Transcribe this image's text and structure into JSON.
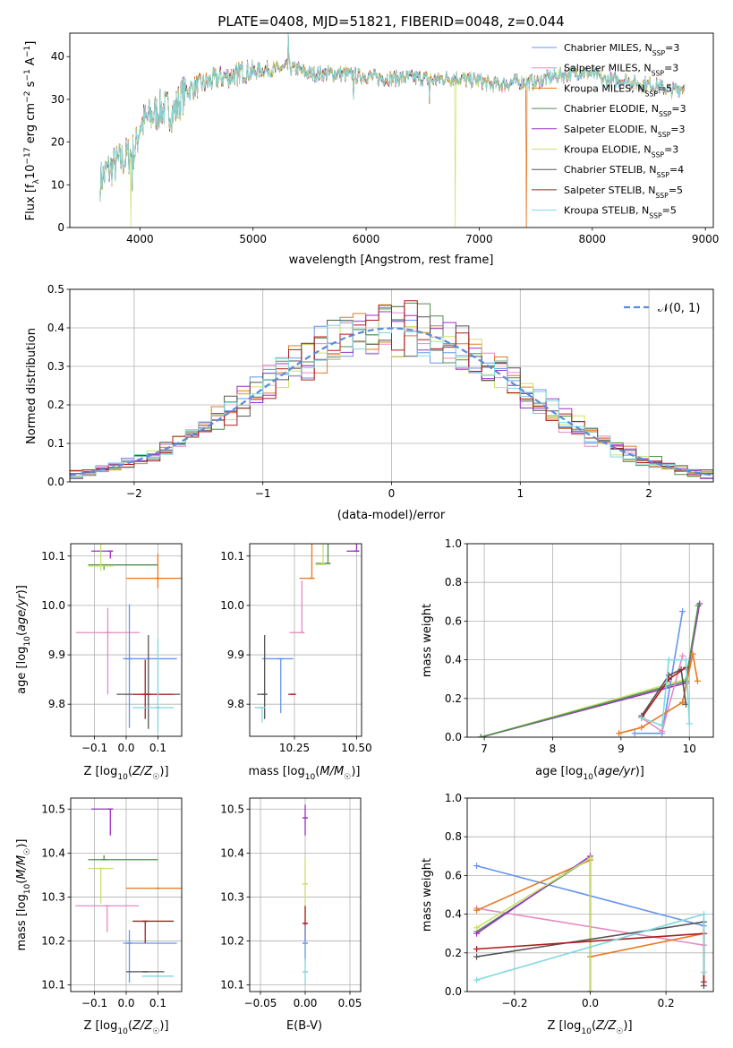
{
  "figure": {
    "title": "PLATE=0408, MJD=51821, FIBERID=0048, z=0.044"
  },
  "models": [
    {
      "name": "Chabrier MILES",
      "nssp": "3",
      "color": "#6495ed"
    },
    {
      "name": "Salpeter MILES",
      "nssp": "3",
      "color": "#e78ac3"
    },
    {
      "name": "Kroupa MILES",
      "nssp": "5",
      "color": "#e8791e"
    },
    {
      "name": "Chabrier ELODIE",
      "nssp": "3",
      "color": "#4f8f4f"
    },
    {
      "name": "Salpeter ELODIE",
      "nssp": "3",
      "color": "#9b30c8"
    },
    {
      "name": "Kroupa ELODIE",
      "nssp": "3",
      "color": "#c8e26b"
    },
    {
      "name": "Chabrier STELIB",
      "nssp": "4",
      "color": "#555555"
    },
    {
      "name": "Salpeter STELIB",
      "nssp": "5",
      "color": "#b01c1c"
    },
    {
      "name": "Kroupa STELIB",
      "nssp": "5",
      "color": "#7fd8e0"
    }
  ],
  "chart_data": [
    {
      "id": "spectrum",
      "type": "line",
      "title": "PLATE=0408, MJD=51821, FIBERID=0048, z=0.044",
      "xlabel": "wavelength [Angstrom, rest frame]",
      "ylabel": "Flux [f_λ 10^-17 erg cm^-2 s^-1 A^-1]",
      "xlim": [
        3380,
        9070
      ],
      "ylim": [
        0,
        45.5
      ],
      "xticks": [
        4000,
        5000,
        6000,
        7000,
        8000,
        9000
      ],
      "yticks": [
        0,
        10,
        20,
        30,
        40
      ],
      "grid": false,
      "legend_position": "top-right",
      "continuum": {
        "x": [
          3650,
          3700,
          3800,
          3900,
          3960,
          4000,
          4100,
          4200,
          4300,
          4400,
          4500,
          4600,
          4700,
          4800,
          4900,
          5000,
          5100,
          5200,
          5300,
          5400,
          5500,
          5600,
          5700,
          5800,
          5900,
          6000,
          6100,
          6200,
          6300,
          6400,
          6500,
          6600,
          6700,
          6800,
          6900,
          7000,
          7100,
          7200,
          7300,
          7400,
          7500,
          7600,
          7700,
          7800,
          7900,
          8000,
          8100,
          8200,
          8300,
          8400,
          8500,
          8600,
          8700,
          8820
        ],
        "y": [
          11,
          13,
          15,
          17,
          18,
          24,
          26,
          28,
          27,
          32,
          33,
          34,
          35,
          35.5,
          36.5,
          36.5,
          37,
          37,
          37.5,
          37,
          36,
          36,
          36,
          36,
          35.5,
          35.5,
          35,
          35,
          35,
          35,
          35,
          34.5,
          35,
          35,
          34.5,
          34.5,
          33.5,
          33.5,
          34,
          34,
          34,
          35,
          35.5,
          36,
          36.5,
          36,
          34.5,
          34.5,
          34.5,
          33.5,
          33.5,
          33,
          32,
          33
        ]
      },
      "dropouts": [
        {
          "model": "Kroupa ELODIE",
          "x": 3920
        },
        {
          "model": "Kroupa ELODIE",
          "x": 6790
        },
        {
          "model": "Kroupa MILES",
          "x": 7420
        }
      ],
      "continuum_end": [
        {
          "model": "Salpeter STELIB",
          "x": 7420
        }
      ]
    },
    {
      "id": "residuals",
      "type": "histogram",
      "xlabel": "(data-model)/error",
      "ylabel": "Normed distribution",
      "xlim": [
        -2.5,
        2.5
      ],
      "ylim": [
        0,
        0.5
      ],
      "xticks": [
        -2,
        -1,
        0,
        1,
        2
      ],
      "yticks": [
        0.0,
        0.1,
        0.2,
        0.3,
        0.4,
        0.5
      ],
      "grid": true,
      "bin_width": 0.1,
      "reference_curve": "𝒩(0, 1)",
      "legend_position": "top-right"
    },
    {
      "id": "age-vs-Z",
      "type": "errorbar",
      "xlabel": "Z [log10(Z/Z☉)]",
      "ylabel": "age [log10(age/yr)]",
      "xlim": [
        -0.175,
        0.175
      ],
      "ylim": [
        9.735,
        10.125
      ],
      "xticks": [
        -0.1,
        0.0,
        0.1
      ],
      "yticks": [
        9.8,
        9.9,
        10.0,
        10.1
      ],
      "grid": true,
      "points": [
        {
          "model": "Salpeter ELODIE",
          "x": -0.05,
          "xerr": [
            0.06,
            0.0
          ],
          "y": 10.11,
          "yerr": [
            0.015,
            0.0
          ]
        },
        {
          "model": "Chabrier ELODIE",
          "x": -0.07,
          "xerr": [
            0.05,
            0.17
          ],
          "y": 10.082,
          "yerr": [
            0.01,
            0.0
          ]
        },
        {
          "model": "Kroupa ELODIE",
          "x": -0.08,
          "xerr": [
            0.04,
            0.04
          ],
          "y": 10.08,
          "yerr": [
            0.01,
            0.06
          ]
        },
        {
          "model": "Kroupa MILES",
          "x": 0.1,
          "xerr": [
            0.1,
            0.08
          ],
          "y": 10.055,
          "yerr": [
            0.02,
            0.05
          ]
        },
        {
          "model": "Salpeter MILES",
          "x": -0.058,
          "xerr": [
            0.1,
            0.1
          ],
          "y": 9.945,
          "yerr": [
            0.125,
            0.05
          ]
        },
        {
          "model": "Chabrier MILES",
          "x": 0.01,
          "xerr": [
            0.02,
            0.15
          ],
          "y": 9.892,
          "yerr": [
            0.14,
            0.11
          ]
        },
        {
          "model": "Chabrier STELIB",
          "x": 0.07,
          "xerr": [
            0.1,
            0.1
          ],
          "y": 9.82,
          "yerr": [
            0.07,
            0.12
          ]
        },
        {
          "model": "Salpeter STELIB",
          "x": 0.06,
          "xerr": [
            0.04,
            0.09
          ],
          "y": 9.82,
          "yerr": [
            0.05,
            0.07
          ]
        },
        {
          "model": "Kroupa STELIB",
          "x": 0.1,
          "xerr": [
            0.08,
            0.05
          ],
          "y": 9.793,
          "yerr": [
            0.05,
            0.14
          ]
        }
      ]
    },
    {
      "id": "age-vs-mass",
      "type": "errorbar",
      "xlabel": "mass [log10(M/M☉)]",
      "ylabel": "",
      "xlim": [
        10.07,
        10.52
      ],
      "ylim": [
        9.735,
        10.125
      ],
      "xticks": [
        10.25,
        10.5
      ],
      "xtick_labels": [
        "10.25",
        "10.50"
      ],
      "yticks": [
        9.8,
        9.9,
        10.0,
        10.1
      ],
      "grid": true,
      "points": [
        {
          "model": "Salpeter ELODIE",
          "x": 10.5,
          "xerr": [
            0.04,
            0.0
          ],
          "y": 10.11,
          "yerr": [
            0.0,
            0.075
          ]
        },
        {
          "model": "Chabrier ELODIE",
          "x": 10.385,
          "xerr": [
            0.05,
            0.0
          ],
          "y": 10.085,
          "yerr": [
            0.0,
            0.06
          ]
        },
        {
          "model": "Kroupa ELODIE",
          "x": 10.365,
          "xerr": [
            0.03,
            0.0
          ],
          "y": 10.083,
          "yerr": [
            0.0,
            0.065
          ]
        },
        {
          "model": "Kroupa MILES",
          "x": 10.32,
          "xerr": [
            0.05,
            0.0
          ],
          "y": 10.055,
          "yerr": [
            0.0,
            0.085
          ]
        },
        {
          "model": "Salpeter MILES",
          "x": 10.28,
          "xerr": [
            0.05,
            0.0
          ],
          "y": 9.945,
          "yerr": [
            0.0,
            0.105
          ]
        },
        {
          "model": "Chabrier MILES",
          "x": 10.195,
          "xerr": [
            0.075,
            0.05
          ],
          "y": 9.892,
          "yerr": [
            0.11,
            0.0
          ]
        },
        {
          "model": "Chabrier STELIB",
          "x": 10.13,
          "xerr": [
            0.03,
            0.0
          ],
          "y": 9.82,
          "yerr": [
            0.05,
            0.12
          ]
        },
        {
          "model": "Salpeter STELIB",
          "x": 10.245,
          "xerr": [
            0.02,
            0.0
          ],
          "y": 9.82,
          "yerr": [
            0.0,
            0.0
          ]
        },
        {
          "model": "Kroupa STELIB",
          "x": 10.12,
          "xerr": [
            0.03,
            0.0
          ],
          "y": 9.793,
          "yerr": [
            0.03,
            0.0
          ]
        }
      ]
    },
    {
      "id": "weight-vs-age",
      "type": "line",
      "xlabel": "age [log10(age/yr)]",
      "ylabel": "mass weight",
      "xlim": [
        6.75,
        10.35
      ],
      "ylim": [
        0,
        1.0
      ],
      "xticks": [
        7,
        8,
        9,
        10
      ],
      "yticks": [
        0.0,
        0.2,
        0.4,
        0.6,
        0.8,
        1.0
      ],
      "grid": true,
      "series": [
        {
          "model": "Kroupa ELODIE",
          "x": [
            6.95,
            9.95,
            10.13
          ],
          "y": [
            0.0,
            0.3,
            0.68
          ]
        },
        {
          "model": "Salpeter ELODIE",
          "x": [
            6.95,
            9.95,
            10.15
          ],
          "y": [
            0.0,
            0.28,
            0.69
          ]
        },
        {
          "model": "Chabrier ELODIE",
          "x": [
            6.95,
            9.95,
            10.13
          ],
          "y": [
            0.0,
            0.29,
            0.68
          ]
        },
        {
          "model": "Chabrier MILES",
          "x": [
            9.2,
            9.6,
            9.9
          ],
          "y": [
            0.02,
            0.02,
            0.65
          ]
        },
        {
          "model": "Salpeter MILES",
          "x": [
            9.3,
            9.6,
            9.9
          ],
          "y": [
            0.1,
            0.03,
            0.42
          ]
        },
        {
          "model": "Kroupa MILES",
          "x": [
            8.97,
            9.3,
            9.9,
            10.05,
            10.12
          ],
          "y": [
            0.02,
            0.05,
            0.18,
            0.43,
            0.29
          ]
        },
        {
          "model": "Chabrier STELIB",
          "x": [
            9.3,
            9.7,
            9.88,
            9.95
          ],
          "y": [
            0.11,
            0.32,
            0.35,
            0.17
          ]
        },
        {
          "model": "Salpeter STELIB",
          "x": [
            9.3,
            9.7,
            9.95
          ],
          "y": [
            0.1,
            0.3,
            0.36
          ]
        },
        {
          "model": "Kroupa STELIB",
          "x": [
            9.3,
            9.6,
            9.7,
            9.95,
            10.0
          ],
          "y": [
            0.1,
            0.06,
            0.4,
            0.4,
            0.07
          ]
        }
      ]
    },
    {
      "id": "mass-vs-Z",
      "type": "errorbar",
      "xlabel": "Z [log10(Z/Z☉)]",
      "ylabel": "mass [log10(M/M☉)]",
      "xlim": [
        -0.175,
        0.175
      ],
      "ylim": [
        10.085,
        10.525
      ],
      "xticks": [
        -0.1,
        0.0,
        0.1
      ],
      "yticks": [
        10.1,
        10.2,
        10.3,
        10.4,
        10.5
      ],
      "grid": true,
      "points": [
        {
          "model": "Salpeter ELODIE",
          "x": -0.05,
          "xerr": [
            0.06,
            0.0
          ],
          "y": 10.5,
          "yerr": [
            0.06,
            0.0
          ]
        },
        {
          "model": "Chabrier ELODIE",
          "x": -0.07,
          "xerr": [
            0.05,
            0.17
          ],
          "y": 10.385,
          "yerr": [
            0.0,
            0.01
          ]
        },
        {
          "model": "Kroupa ELODIE",
          "x": -0.08,
          "xerr": [
            0.04,
            0.04
          ],
          "y": 10.365,
          "yerr": [
            0.08,
            0.0
          ]
        },
        {
          "model": "Kroupa MILES",
          "x": 0.1,
          "xerr": [
            0.1,
            0.08
          ],
          "y": 10.32,
          "yerr": [
            0.0,
            0.0
          ]
        },
        {
          "model": "Salpeter MILES",
          "x": -0.06,
          "xerr": [
            0.1,
            0.1
          ],
          "y": 10.28,
          "yerr": [
            0.06,
            0.0
          ]
        },
        {
          "model": "Chabrier MILES",
          "x": 0.01,
          "xerr": [
            0.02,
            0.15
          ],
          "y": 10.195,
          "yerr": [
            0.09,
            0.03
          ]
        },
        {
          "model": "Chabrier STELIB",
          "x": 0.06,
          "xerr": [
            0.06,
            0.06
          ],
          "y": 10.13,
          "yerr": [
            0.0,
            0.0
          ]
        },
        {
          "model": "Salpeter STELIB",
          "x": 0.06,
          "xerr": [
            0.04,
            0.09
          ],
          "y": 10.245,
          "yerr": [
            0.05,
            0.0
          ]
        },
        {
          "model": "Kroupa STELIB",
          "x": 0.1,
          "xerr": [
            0.05,
            0.05
          ],
          "y": 10.12,
          "yerr": [
            0.0,
            0.0
          ]
        }
      ]
    },
    {
      "id": "mass-vs-EBV",
      "type": "errorbar",
      "xlabel": "E(B-V)",
      "ylabel": "",
      "xlim": [
        -0.062,
        0.062
      ],
      "ylim": [
        10.085,
        10.525
      ],
      "xticks": [
        -0.05,
        0.0,
        0.05
      ],
      "yticks": [
        10.1,
        10.2,
        10.3,
        10.4,
        10.5
      ],
      "grid": true,
      "points": [
        {
          "model": "Salpeter ELODIE",
          "x": 0.0,
          "xerr": [
            0.0,
            0.0
          ],
          "y": 10.48,
          "yerr": [
            0.04,
            0.03
          ]
        },
        {
          "model": "Kroupa ELODIE",
          "x": 0.0,
          "xerr": [
            0.0,
            0.0
          ],
          "y": 10.33,
          "yerr": [
            0.09,
            0.06
          ]
        },
        {
          "model": "Salpeter STELIB",
          "x": 0.0,
          "xerr": [
            0.0,
            0.0
          ],
          "y": 10.24,
          "yerr": [
            0.04,
            0.04
          ]
        },
        {
          "model": "Chabrier MILES",
          "x": 0.0,
          "xerr": [
            0.0,
            0.0
          ],
          "y": 10.195,
          "yerr": [
            0.04,
            0.04
          ]
        },
        {
          "model": "Kroupa STELIB",
          "x": 0.0,
          "xerr": [
            0.0,
            0.0
          ],
          "y": 10.13,
          "yerr": [
            0.03,
            0.03
          ]
        }
      ]
    },
    {
      "id": "weight-vs-Z",
      "type": "line",
      "xlabel": "Z [log10(Z/Z☉)]",
      "ylabel": "mass weight",
      "xlim": [
        -0.325,
        0.325
      ],
      "ylim": [
        0,
        1.0
      ],
      "xticks": [
        -0.2,
        0.0,
        0.2
      ],
      "yticks": [
        0.0,
        0.2,
        0.4,
        0.6,
        0.8,
        1.0
      ],
      "grid": true,
      "series": [
        {
          "model": "Chabrier MILES",
          "x": [
            -0.3,
            0.3
          ],
          "y": [
            0.65,
            0.34
          ]
        },
        {
          "model": "Salpeter MILES",
          "x": [
            -0.3,
            0.3
          ],
          "y": [
            0.43,
            0.24
          ]
        },
        {
          "model": "Kroupa MILES",
          "x": [
            -0.3,
            0.0,
            0.0,
            0.3
          ],
          "y": [
            0.42,
            0.68,
            0.18,
            0.3
          ]
        },
        {
          "model": "Chabrier ELODIE",
          "x": [
            -0.3,
            0.0,
            0.0
          ],
          "y": [
            0.31,
            0.69,
            0.0
          ]
        },
        {
          "model": "Salpeter ELODIE",
          "x": [
            -0.3,
            0.0,
            0.0
          ],
          "y": [
            0.3,
            0.7,
            0.0
          ]
        },
        {
          "model": "Kroupa ELODIE",
          "x": [
            -0.3,
            0.0,
            0.0
          ],
          "y": [
            0.33,
            0.69,
            0.0
          ]
        },
        {
          "model": "Chabrier STELIB",
          "x": [
            -0.3,
            0.3,
            0.3
          ],
          "y": [
            0.18,
            0.36,
            0.03
          ]
        },
        {
          "model": "Salpeter STELIB",
          "x": [
            -0.3,
            0.3,
            0.3
          ],
          "y": [
            0.22,
            0.3,
            0.05
          ]
        },
        {
          "model": "Kroupa STELIB",
          "x": [
            -0.3,
            0.3,
            0.3
          ],
          "y": [
            0.06,
            0.4,
            0.1
          ]
        }
      ]
    }
  ]
}
